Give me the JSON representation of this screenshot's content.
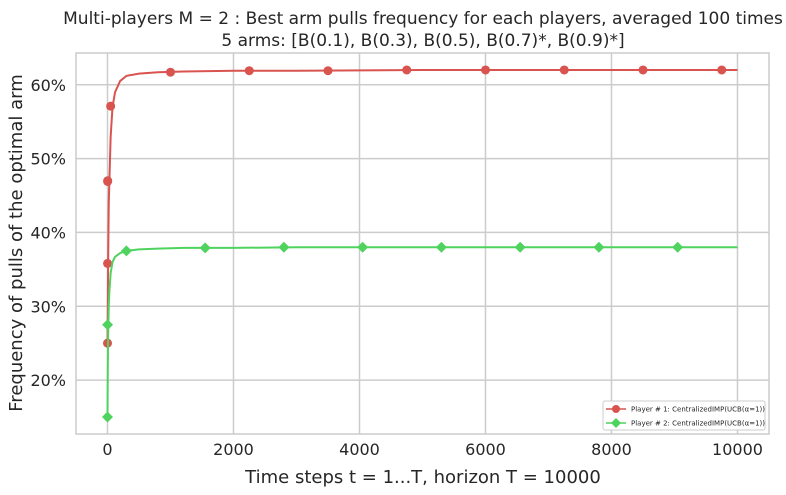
{
  "chart_data": {
    "type": "line",
    "title_line1": "Multi-players M = 2 : Best arm pulls frequency for each players, averaged 100 times",
    "title_line2": "5 arms: [B(0.1), B(0.3), B(0.5), B(0.7)*, B(0.9)*]",
    "xlabel": "Time steps t = 1...T, horizon T = 10000",
    "ylabel": "Frequency of pulls of the optimal arm",
    "xlim": [
      -500,
      10500
    ],
    "ylim": [
      0.127,
      0.643
    ],
    "x_ticks": [
      0,
      2000,
      4000,
      6000,
      8000,
      10000
    ],
    "x_tick_labels": [
      "0",
      "2000",
      "4000",
      "6000",
      "8000",
      "10000"
    ],
    "y_ticks": [
      0.2,
      0.3,
      0.4,
      0.5,
      0.6
    ],
    "y_tick_labels": [
      "20%",
      "30%",
      "40%",
      "50%",
      "60%"
    ],
    "grid": true,
    "legend_position": "lower-right",
    "series": [
      {
        "name": "Player # 1: CentralizedIMP(UCB(α=1))",
        "color": "#d9534f",
        "marker": "circle",
        "line_x": [
          0,
          5,
          10,
          20,
          30,
          50,
          80,
          120,
          200,
          300,
          500,
          800,
          1200,
          2000,
          3000,
          5000,
          7000,
          10000
        ],
        "line_y": [
          0.25,
          0.3,
          0.36,
          0.44,
          0.47,
          0.53,
          0.57,
          0.59,
          0.605,
          0.612,
          0.615,
          0.617,
          0.618,
          0.619,
          0.619,
          0.62,
          0.62,
          0.62
        ],
        "marker_x": [
          0,
          1,
          2,
          3,
          50,
          1000,
          2250,
          3500,
          4750,
          6000,
          7250,
          8500,
          9750
        ],
        "marker_y": [
          0.25,
          0.358,
          0.469,
          0.47,
          0.571,
          0.617,
          0.619,
          0.619,
          0.62,
          0.62,
          0.62,
          0.62,
          0.62
        ]
      },
      {
        "name": "Player # 2: CentralizedIMP(UCB(α=1))",
        "color": "#4fd35f",
        "marker": "diamond",
        "line_x": [
          0,
          5,
          10,
          20,
          30,
          50,
          80,
          120,
          200,
          300,
          500,
          800,
          1200,
          2000,
          3000,
          5000,
          7000,
          10000
        ],
        "line_y": [
          0.15,
          0.22,
          0.26,
          0.3,
          0.32,
          0.345,
          0.36,
          0.367,
          0.372,
          0.375,
          0.377,
          0.378,
          0.379,
          0.379,
          0.38,
          0.38,
          0.38,
          0.38
        ],
        "marker_x": [
          0,
          1,
          300,
          1550,
          2800,
          4050,
          5300,
          6550,
          7800,
          9050
        ],
        "marker_y": [
          0.15,
          0.275,
          0.375,
          0.379,
          0.38,
          0.38,
          0.38,
          0.38,
          0.38,
          0.38
        ]
      }
    ]
  }
}
